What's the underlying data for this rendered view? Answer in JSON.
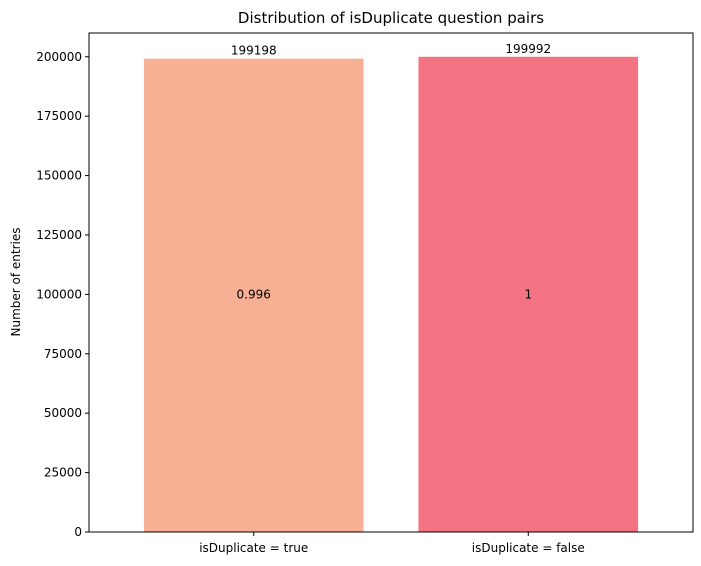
{
  "chart_data": {
    "type": "bar",
    "title": "Distribution of isDuplicate question pairs",
    "xlabel": "",
    "ylabel": "Number of entries",
    "categories": [
      "isDuplicate = true",
      "isDuplicate = false"
    ],
    "values": [
      199198,
      199992
    ],
    "bar_top_labels": [
      "199198",
      "199992"
    ],
    "bar_mid_labels": [
      "0.996",
      "1"
    ],
    "colors": [
      "#f7b094",
      "#f47383"
    ],
    "ylim": [
      0,
      210000
    ],
    "yticks": [
      0,
      25000,
      50000,
      75000,
      100000,
      125000,
      150000,
      175000,
      200000
    ],
    "ytick_labels": [
      "0",
      "25000",
      "50000",
      "75000",
      "100000",
      "125000",
      "150000",
      "175000",
      "200000"
    ],
    "grid": false
  }
}
